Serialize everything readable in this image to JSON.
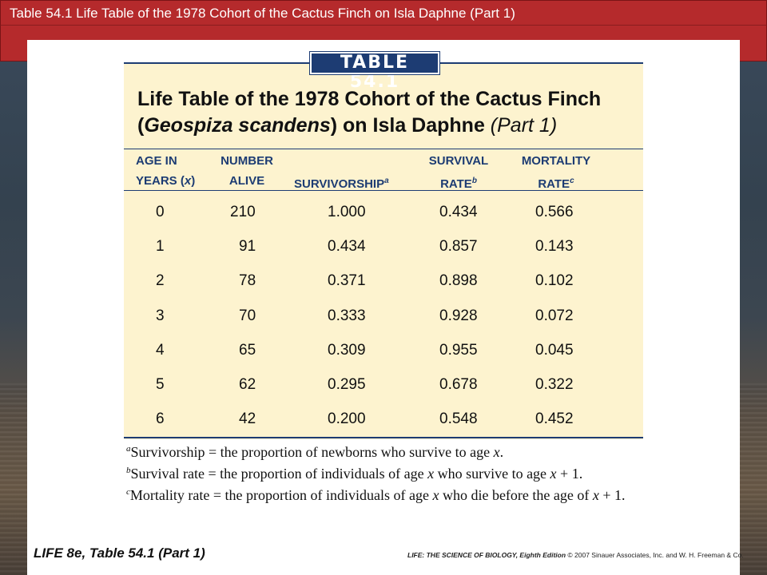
{
  "header": {
    "title": "Table 54.1  Life Table of the 1978 Cohort of the Cactus Finch on Isla Daphne (Part 1)"
  },
  "table": {
    "tag": "TABLE 54.1",
    "heading_line1": "Life Table of the 1978 Cohort of the Cactus Finch",
    "heading_open": "(",
    "heading_species": "Geospiza scandens",
    "heading_rest": ") on Isla Daphne ",
    "heading_part": "(Part 1)",
    "columns": [
      {
        "line1": "AGE IN",
        "line2": "YEARS (",
        "var": "x",
        "close": ")"
      },
      {
        "line1": "NUMBER",
        "line2": "ALIVE"
      },
      {
        "line1": "",
        "line2": "SURVIVORSHIP",
        "sup": "a"
      },
      {
        "line1": "SURVIVAL",
        "line2": "RATE",
        "sup": "b"
      },
      {
        "line1": "MORTALITY",
        "line2": "RATE",
        "sup": "c"
      }
    ],
    "rows": [
      [
        "0",
        "210",
        "1.000",
        "0.434",
        "0.566"
      ],
      [
        "1",
        "91",
        "0.434",
        "0.857",
        "0.143"
      ],
      [
        "2",
        "78",
        "0.371",
        "0.898",
        "0.102"
      ],
      [
        "3",
        "70",
        "0.333",
        "0.928",
        "0.072"
      ],
      [
        "4",
        "65",
        "0.309",
        "0.955",
        "0.045"
      ],
      [
        "5",
        "62",
        "0.295",
        "0.678",
        "0.322"
      ],
      [
        "6",
        "42",
        "0.200",
        "0.548",
        "0.452"
      ]
    ]
  },
  "footnotes": {
    "a": {
      "sup": "a",
      "before": "Survivorship = the proportion of newborns who survive to age ",
      "var": "x",
      "after": "."
    },
    "b": {
      "sup": "b",
      "before": "Survival rate = the proportion of individuals of age ",
      "var": "x",
      "after": " who survive to age ",
      "var2": "x",
      "after2": " + 1."
    },
    "c": {
      "sup": "c",
      "before": "Mortality rate = the proportion of individuals of age ",
      "var": "x",
      "after": " who die before the age of ",
      "var2": "x",
      "after2": " + 1."
    }
  },
  "footer": {
    "left": "LIFE 8e, Table 54.1 (Part 1)",
    "book": "LIFE: THE SCIENCE OF BIOLOGY, Eighth Edition",
    "copyright": " © 2007 Sinauer Associates, Inc. and W. H. Freeman & Co."
  },
  "colors": {
    "title_bar": "#b52a2c",
    "table_bg": "#fdf3cf",
    "table_navy": "#1d3c73"
  }
}
